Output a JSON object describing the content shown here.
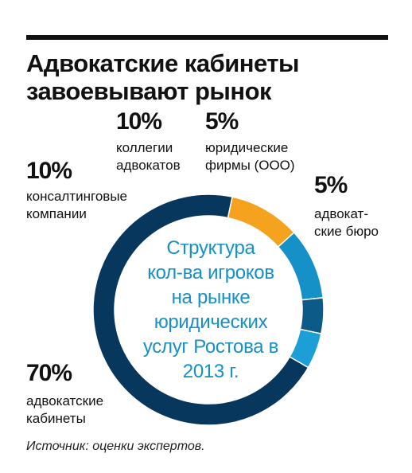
{
  "header": {
    "title_lines": [
      "Адвокатские кабинеты",
      "завоевывают рынок"
    ]
  },
  "chart_data": {
    "type": "pie",
    "variant": "donut",
    "center_text_lines": [
      "Структура",
      "кол-ва игроков",
      "на рынке",
      "юридических",
      "услуг Ростова в",
      "2013 г."
    ],
    "slices": [
      {
        "value": 70,
        "pct_label": "70%",
        "label_lines": [
          "адвокатские",
          "кабинеты"
        ],
        "color": "#08375d"
      },
      {
        "value": 10,
        "pct_label": "10%",
        "label_lines": [
          "консалтинговые",
          "компании"
        ],
        "color": "#f5a31e"
      },
      {
        "value": 10,
        "pct_label": "10%",
        "label_lines": [
          "коллегии",
          "адвокатов"
        ],
        "color": "#1591c7"
      },
      {
        "value": 5,
        "pct_label": "5%",
        "label_lines": [
          "юридические",
          "фирмы (ООО)"
        ],
        "color": "#0b5a88"
      },
      {
        "value": 5,
        "pct_label": "5%",
        "label_lines": [
          "адвокат-",
          "ские бюро"
        ],
        "color": "#1b9fd6"
      }
    ]
  },
  "footer": {
    "source": "Источник: оценки экспертов."
  }
}
